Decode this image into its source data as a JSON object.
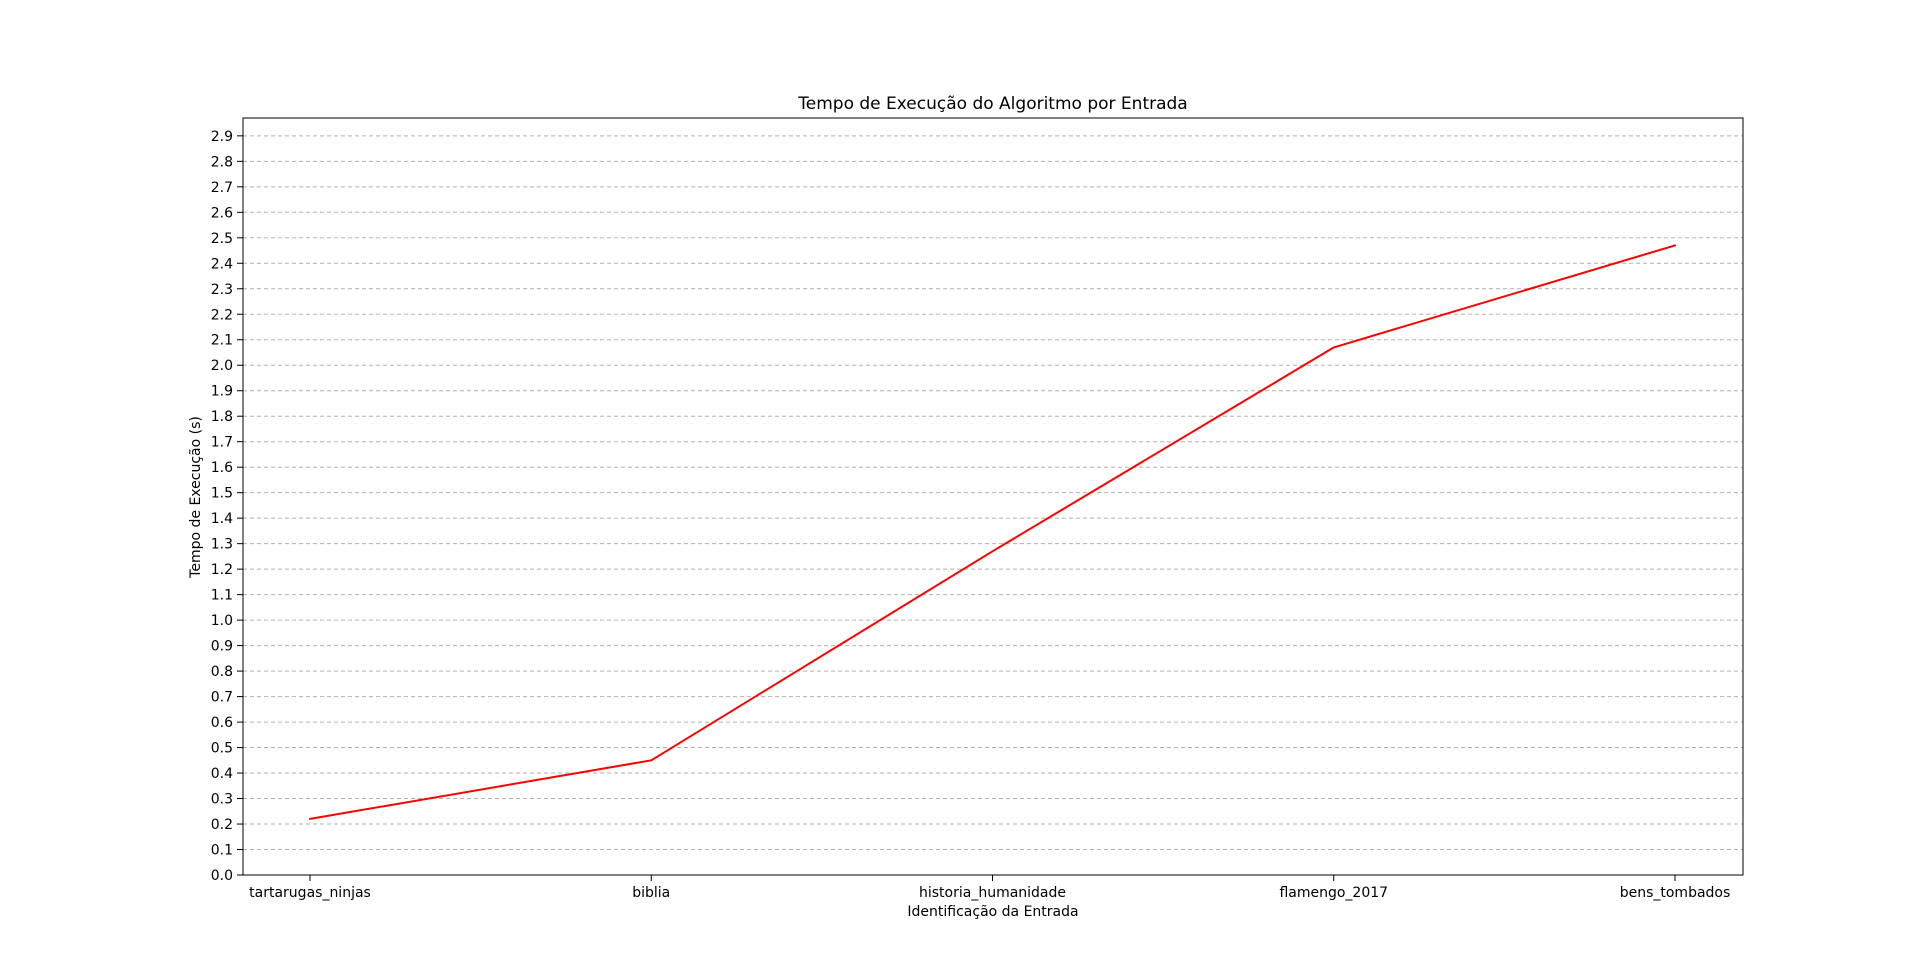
{
  "chart_data": {
    "type": "line",
    "title": "Tempo de Execução do Algoritmo por Entrada",
    "xlabel": "Identificação da Entrada",
    "ylabel": "Tempo de Execução (s)",
    "categories": [
      "tartarugas_ninjas",
      "biblia",
      "historia_humanidade",
      "flamengo_2017",
      "bens_tombados"
    ],
    "series": [
      {
        "values": [
          0.22,
          0.45,
          1.27,
          2.07,
          2.47
        ],
        "color": "#ff0000"
      }
    ],
    "ylim": [
      0.0,
      2.97
    ],
    "yticks": [
      "0.0",
      "0.1",
      "0.2",
      "0.3",
      "0.4",
      "0.5",
      "0.6",
      "0.7",
      "0.8",
      "0.9",
      "1.0",
      "1.1",
      "1.2",
      "1.3",
      "1.4",
      "1.5",
      "1.6",
      "1.7",
      "1.8",
      "1.9",
      "2.0",
      "2.1",
      "2.2",
      "2.3",
      "2.4",
      "2.5",
      "2.6",
      "2.7",
      "2.8",
      "2.9"
    ],
    "grid": "y-dashed",
    "legend": "none"
  }
}
